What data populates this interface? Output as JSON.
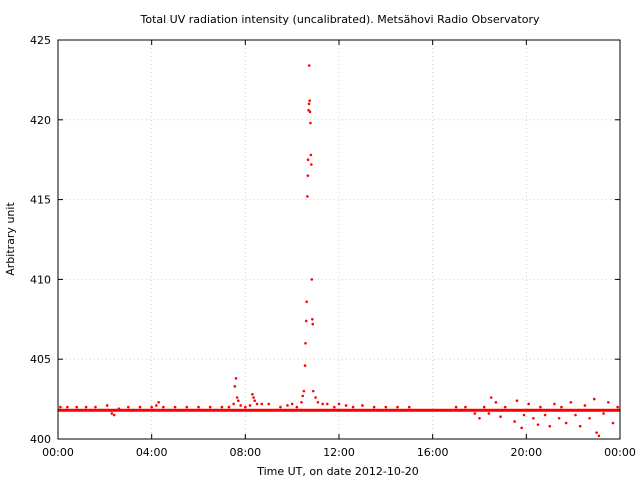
{
  "chart_data": {
    "type": "scatter",
    "title": "Total UV radiation intensity (uncalibrated). Metsähovi Radio Observatory",
    "xlabel": "Time UT, on date 2012-10-20",
    "ylabel": "Arbitrary unit",
    "xlim": [
      0,
      24
    ],
    "ylim": [
      400,
      425
    ],
    "x_ticks": [
      0,
      4,
      8,
      12,
      16,
      20,
      24
    ],
    "x_tick_labels": [
      "00:00",
      "04:00",
      "08:00",
      "12:00",
      "16:00",
      "20:00",
      "00:00"
    ],
    "y_ticks": [
      400,
      405,
      410,
      415,
      420,
      425
    ],
    "y_tick_labels": [
      "400",
      "405",
      "410",
      "415",
      "420",
      "425"
    ],
    "grid": true,
    "legend": "none",
    "series": [
      {
        "color": "#ff0000",
        "marker": "point",
        "baseline": 401.8,
        "baseline_x_range": [
          0,
          24
        ],
        "points": [
          [
            0.1,
            402.0
          ],
          [
            0.4,
            402.0
          ],
          [
            0.8,
            402.0
          ],
          [
            1.2,
            402.0
          ],
          [
            1.6,
            402.0
          ],
          [
            2.1,
            402.1
          ],
          [
            2.3,
            401.6
          ],
          [
            2.4,
            401.5
          ],
          [
            2.6,
            401.9
          ],
          [
            3.0,
            402.0
          ],
          [
            3.5,
            402.0
          ],
          [
            4.0,
            402.0
          ],
          [
            4.2,
            402.1
          ],
          [
            4.3,
            402.3
          ],
          [
            4.5,
            402.0
          ],
          [
            5.0,
            402.0
          ],
          [
            5.5,
            402.0
          ],
          [
            6.0,
            402.0
          ],
          [
            6.5,
            402.0
          ],
          [
            7.0,
            402.0
          ],
          [
            7.3,
            402.0
          ],
          [
            7.5,
            402.2
          ],
          [
            7.55,
            403.3
          ],
          [
            7.6,
            403.8
          ],
          [
            7.65,
            402.6
          ],
          [
            7.7,
            402.4
          ],
          [
            7.8,
            402.1
          ],
          [
            8.0,
            402.0
          ],
          [
            8.2,
            402.1
          ],
          [
            8.3,
            402.8
          ],
          [
            8.35,
            402.6
          ],
          [
            8.4,
            402.4
          ],
          [
            8.5,
            402.2
          ],
          [
            8.7,
            402.2
          ],
          [
            9.0,
            402.2
          ],
          [
            9.5,
            402.0
          ],
          [
            9.8,
            402.1
          ],
          [
            10.0,
            402.2
          ],
          [
            10.2,
            402.0
          ],
          [
            10.4,
            402.3
          ],
          [
            10.45,
            402.7
          ],
          [
            10.5,
            403.0
          ],
          [
            10.55,
            404.6
          ],
          [
            10.57,
            406.0
          ],
          [
            10.6,
            407.4
          ],
          [
            10.62,
            408.6
          ],
          [
            10.65,
            415.2
          ],
          [
            10.67,
            416.5
          ],
          [
            10.68,
            417.5
          ],
          [
            10.7,
            420.6
          ],
          [
            10.72,
            421.0
          ],
          [
            10.73,
            423.4
          ],
          [
            10.75,
            421.2
          ],
          [
            10.76,
            420.5
          ],
          [
            10.78,
            419.8
          ],
          [
            10.8,
            417.8
          ],
          [
            10.82,
            417.2
          ],
          [
            10.84,
            410.0
          ],
          [
            10.86,
            407.5
          ],
          [
            10.88,
            407.2
          ],
          [
            10.9,
            403.0
          ],
          [
            11.0,
            402.6
          ],
          [
            11.1,
            402.3
          ],
          [
            11.3,
            402.2
          ],
          [
            11.5,
            402.2
          ],
          [
            11.8,
            402.0
          ],
          [
            12.0,
            402.2
          ],
          [
            12.3,
            402.1
          ],
          [
            12.6,
            402.0
          ],
          [
            13.0,
            402.1
          ],
          [
            13.5,
            402.0
          ],
          [
            14.0,
            402.0
          ],
          [
            14.5,
            402.0
          ],
          [
            15.0,
            402.0
          ],
          [
            17.0,
            402.0
          ],
          [
            17.4,
            402.0
          ],
          [
            17.8,
            401.6
          ],
          [
            18.0,
            401.3
          ],
          [
            18.2,
            402.0
          ],
          [
            18.4,
            401.6
          ],
          [
            18.5,
            402.6
          ],
          [
            18.7,
            402.3
          ],
          [
            18.9,
            401.4
          ],
          [
            19.1,
            402.0
          ],
          [
            19.3,
            401.8
          ],
          [
            19.5,
            401.1
          ],
          [
            19.6,
            402.4
          ],
          [
            19.8,
            400.7
          ],
          [
            19.9,
            401.5
          ],
          [
            20.1,
            402.2
          ],
          [
            20.3,
            401.3
          ],
          [
            20.5,
            400.9
          ],
          [
            20.6,
            402.0
          ],
          [
            20.8,
            401.5
          ],
          [
            21.0,
            400.8
          ],
          [
            21.2,
            402.2
          ],
          [
            21.4,
            401.3
          ],
          [
            21.5,
            402.0
          ],
          [
            21.7,
            401.0
          ],
          [
            21.9,
            402.3
          ],
          [
            22.1,
            401.5
          ],
          [
            22.3,
            400.8
          ],
          [
            22.5,
            402.1
          ],
          [
            22.7,
            401.3
          ],
          [
            22.9,
            402.5
          ],
          [
            23.0,
            400.4
          ],
          [
            23.1,
            400.2
          ],
          [
            23.3,
            401.6
          ],
          [
            23.5,
            402.3
          ],
          [
            23.7,
            401.0
          ],
          [
            23.9,
            402.0
          ]
        ]
      }
    ]
  }
}
